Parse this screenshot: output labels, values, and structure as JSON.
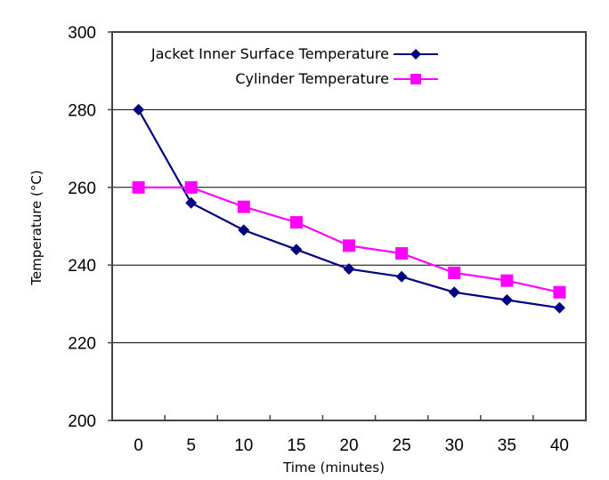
{
  "chart_data": {
    "type": "line",
    "title": "",
    "xlabel": "Time (minutes)",
    "ylabel": "Temperature (°C)",
    "categories": [
      "0",
      "5",
      "10",
      "15",
      "20",
      "25",
      "30",
      "35",
      "40"
    ],
    "ylim": [
      200,
      300
    ],
    "yticks": [
      "200",
      "220",
      "240",
      "260",
      "280",
      "300"
    ],
    "grid": "horizontal",
    "legend_position": "top-right",
    "series": [
      {
        "name": "Jacket Inner Surface Temperature",
        "color": "#000080",
        "marker": "diamond",
        "values": [
          280,
          256,
          249,
          244,
          239,
          237,
          233,
          231,
          229
        ]
      },
      {
        "name": "Cylinder Temperature",
        "color": "#ff00ff",
        "marker": "square",
        "values": [
          260,
          260,
          255,
          251,
          245,
          243,
          238,
          236,
          233
        ]
      }
    ]
  }
}
